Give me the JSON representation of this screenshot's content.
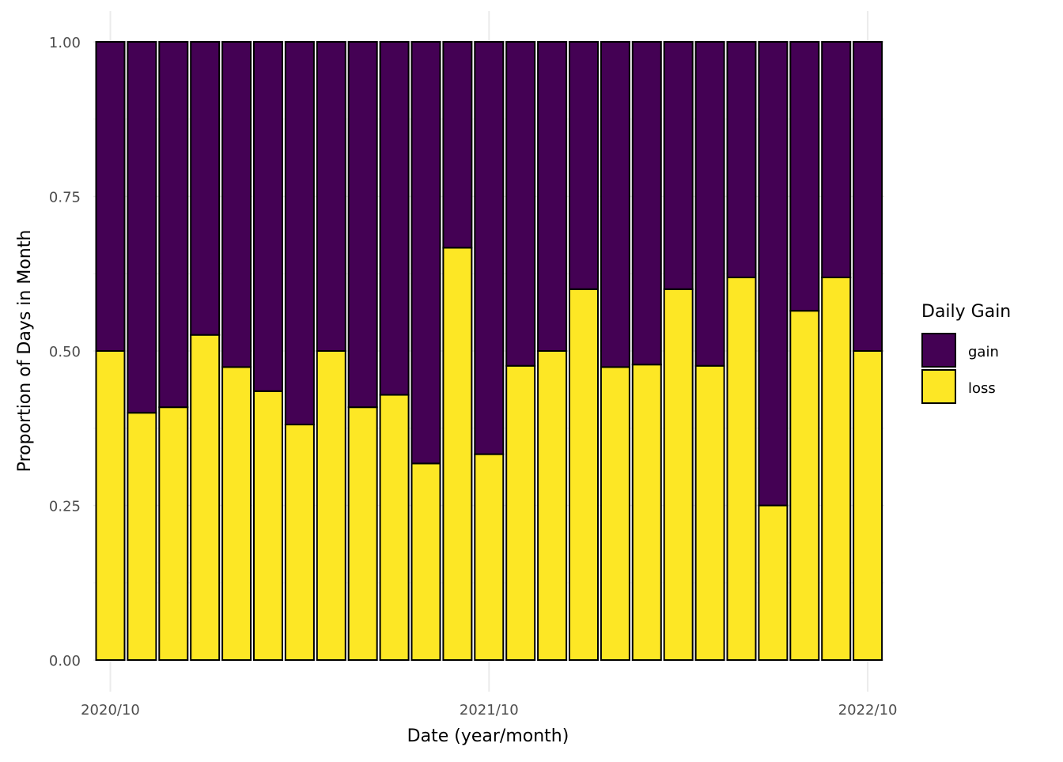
{
  "chart_data": {
    "type": "bar",
    "stacked": true,
    "xlabel": "Date (year/month)",
    "ylabel": "Proportion of Days in Month",
    "ylim": [
      0,
      1
    ],
    "yticks": [
      "0.00",
      "0.25",
      "0.50",
      "0.75",
      "1.00"
    ],
    "xticks": [
      {
        "label": "2020/10",
        "month": "2020-10"
      },
      {
        "label": "2021/10",
        "month": "2021-10"
      },
      {
        "label": "2022/10",
        "month": "2022-10"
      }
    ],
    "categories": [
      "2020-10",
      "2020-11",
      "2020-12",
      "2021-01",
      "2021-02",
      "2021-03",
      "2021-04",
      "2021-05",
      "2021-06",
      "2021-07",
      "2021-08",
      "2021-09",
      "2021-10",
      "2021-11",
      "2021-12",
      "2022-01",
      "2022-02",
      "2022-03",
      "2022-04",
      "2022-05",
      "2022-06",
      "2022-07",
      "2022-08",
      "2022-09",
      "2022-10"
    ],
    "series": [
      {
        "name": "gain",
        "color": "#440154",
        "values": [
          0.5,
          0.6,
          0.591,
          0.474,
          0.526,
          0.565,
          0.619,
          0.5,
          0.591,
          0.571,
          0.682,
          0.333,
          0.667,
          0.524,
          0.5,
          0.4,
          0.526,
          0.522,
          0.4,
          0.524,
          0.381,
          0.75,
          0.435,
          0.381,
          0.5
        ]
      },
      {
        "name": "loss",
        "color": "#FDE725",
        "values": [
          0.5,
          0.4,
          0.409,
          0.526,
          0.474,
          0.435,
          0.381,
          0.5,
          0.409,
          0.429,
          0.318,
          0.667,
          0.333,
          0.476,
          0.5,
          0.6,
          0.474,
          0.478,
          0.6,
          0.476,
          0.619,
          0.25,
          0.565,
          0.619,
          0.5
        ]
      }
    ],
    "legend": {
      "title": "Daily Gain",
      "position": "right"
    },
    "grid": true
  }
}
